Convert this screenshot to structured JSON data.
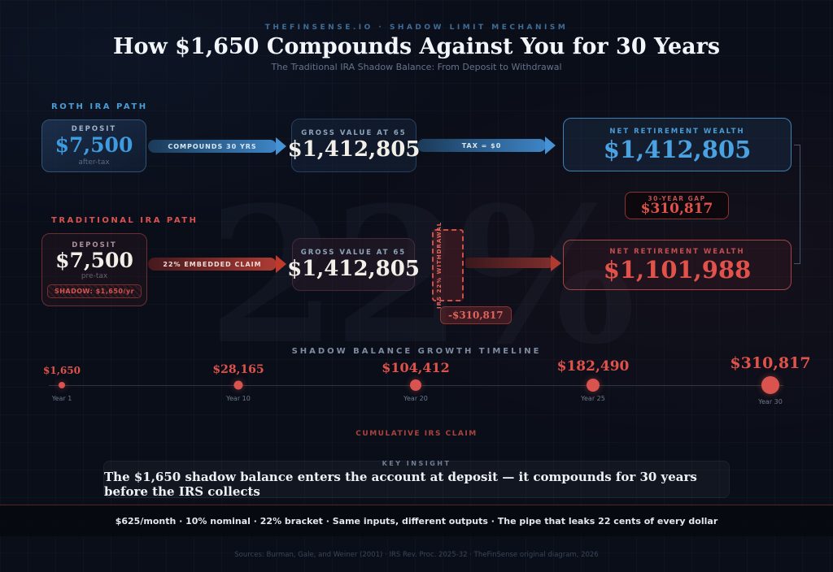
{
  "header": {
    "brand": "THEFINSENSE.IO · SHADOW LIMIT MECHANISM",
    "title": "How $1,650 Compounds Against You for 30 Years",
    "subtitle": "The Traditional IRA Shadow Balance: From Deposit to Withdrawal"
  },
  "colors": {
    "background": "#0a0e19",
    "blue_accent": "#4aa3e0",
    "red_accent": "#e0524a",
    "dot": "#d9534f"
  },
  "watermark": "22%",
  "roth": {
    "path_label": "ROTH IRA PATH",
    "deposit": {
      "label": "DEPOSIT",
      "value": "$7,500",
      "sub": "after-tax"
    },
    "arrow_compound": "COMPOUNDS 30 YRS",
    "gross": {
      "label": "GROSS VALUE AT 65",
      "value": "$1,412,805"
    },
    "arrow_tax": "TAX = $0",
    "net": {
      "label": "NET RETIREMENT WEALTH",
      "value": "$1,412,805"
    }
  },
  "gap": {
    "label": "30-YEAR GAP",
    "value": "$310,817"
  },
  "traditional": {
    "path_label": "TRADITIONAL IRA PATH",
    "deposit": {
      "label": "DEPOSIT",
      "value": "$7,500",
      "sub": "pre-tax",
      "shadow_badge": "SHADOW: $1,650/yr"
    },
    "arrow_claim": "22% EMBEDDED CLAIM",
    "gross": {
      "label": "GROSS VALUE AT 65",
      "value": "$1,412,805"
    },
    "gate": {
      "label": "IRS 22% WITHDRAWAL",
      "loss": "-$310,817"
    },
    "net": {
      "label": "NET RETIREMENT WEALTH",
      "value": "$1,101,988"
    }
  },
  "timeline": {
    "title": "SHADOW BALANCE GROWTH TIMELINE",
    "caption": "CUMULATIVE IRS CLAIM",
    "points": [
      {
        "year": "Year 1",
        "value": "$1,650"
      },
      {
        "year": "Year 10",
        "value": "$28,165"
      },
      {
        "year": "Year 20",
        "value": "$104,412"
      },
      {
        "year": "Year 25",
        "value": "$182,490"
      },
      {
        "year": "Year 30",
        "value": "$310,817"
      }
    ]
  },
  "chart_data": {
    "type": "line",
    "title": "SHADOW BALANCE GROWTH TIMELINE",
    "categories": [
      "Year 1",
      "Year 10",
      "Year 20",
      "Year 25",
      "Year 30"
    ],
    "values": [
      1650,
      28165,
      104412,
      182490,
      310817
    ],
    "series_label": "CUMULATIVE IRS CLAIM",
    "legend_position": "none",
    "grid": false
  },
  "insight": {
    "label": "KEY INSIGHT",
    "text": "The $1,650 shadow balance enters the account at deposit — it compounds for 30 years before the IRS collects"
  },
  "footer": {
    "tagline": "$625/month · 10% nominal · 22% bracket · Same inputs, different outputs · The pipe that leaks 22 cents of every dollar",
    "sources": "Sources: Burman, Gale, and Weiner (2001) · IRS Rev. Proc. 2025-32 · TheFinSense original diagram, 2026"
  }
}
